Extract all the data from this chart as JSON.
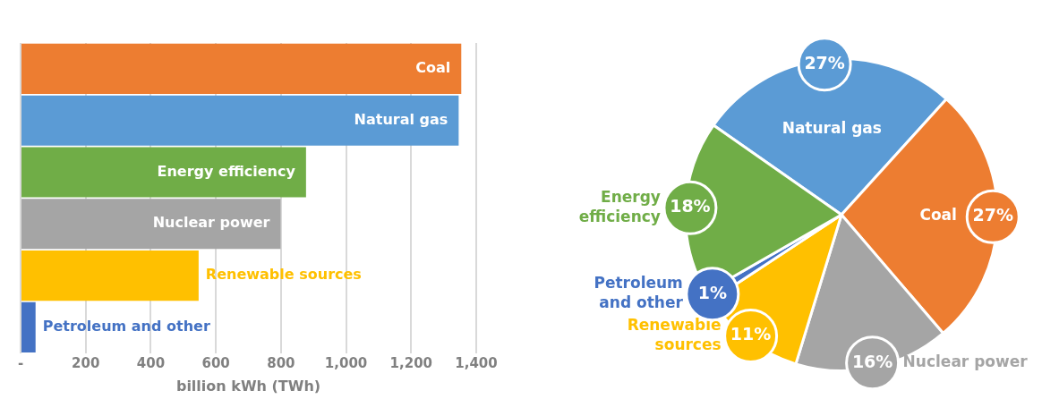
{
  "chart_data": [
    {
      "type": "bar",
      "orientation": "horizontal",
      "categories": [
        "Coal",
        "Natural gas",
        "Energy efficiency",
        "Nuclear power",
        "Renewable sources",
        "Petroleum and other"
      ],
      "values": [
        1354,
        1346,
        877,
        799,
        547,
        46
      ],
      "colors": [
        "#ed7d31",
        "#5b9bd5",
        "#70ad47",
        "#a5a5a5",
        "#ffc000",
        "#4472c4"
      ],
      "xlabel": "billion kWh (TWh)",
      "xlim": [
        0,
        1400
      ],
      "xticks": [
        {
          "value": 0,
          "label": "-"
        },
        200,
        400,
        600,
        800,
        {
          "value": 1000,
          "label": "1,000"
        },
        {
          "value": 1200,
          "label": "1,200"
        },
        {
          "value": 1400,
          "label": "1,400"
        }
      ],
      "grid": "x"
    },
    {
      "type": "pie",
      "categories": [
        "Natural gas",
        "Coal",
        "Nuclear power",
        "Renewable sources",
        "Petroleum and other",
        "Energy efficiency"
      ],
      "values": [
        27,
        27,
        16,
        11,
        1,
        18
      ],
      "colors": [
        "#5b9bd5",
        "#ed7d31",
        "#a5a5a5",
        "#ffc000",
        "#4472c4",
        "#70ad47"
      ],
      "value_labels": [
        "27%",
        "27%",
        "16%",
        "11%",
        "1%",
        "18%"
      ]
    }
  ]
}
